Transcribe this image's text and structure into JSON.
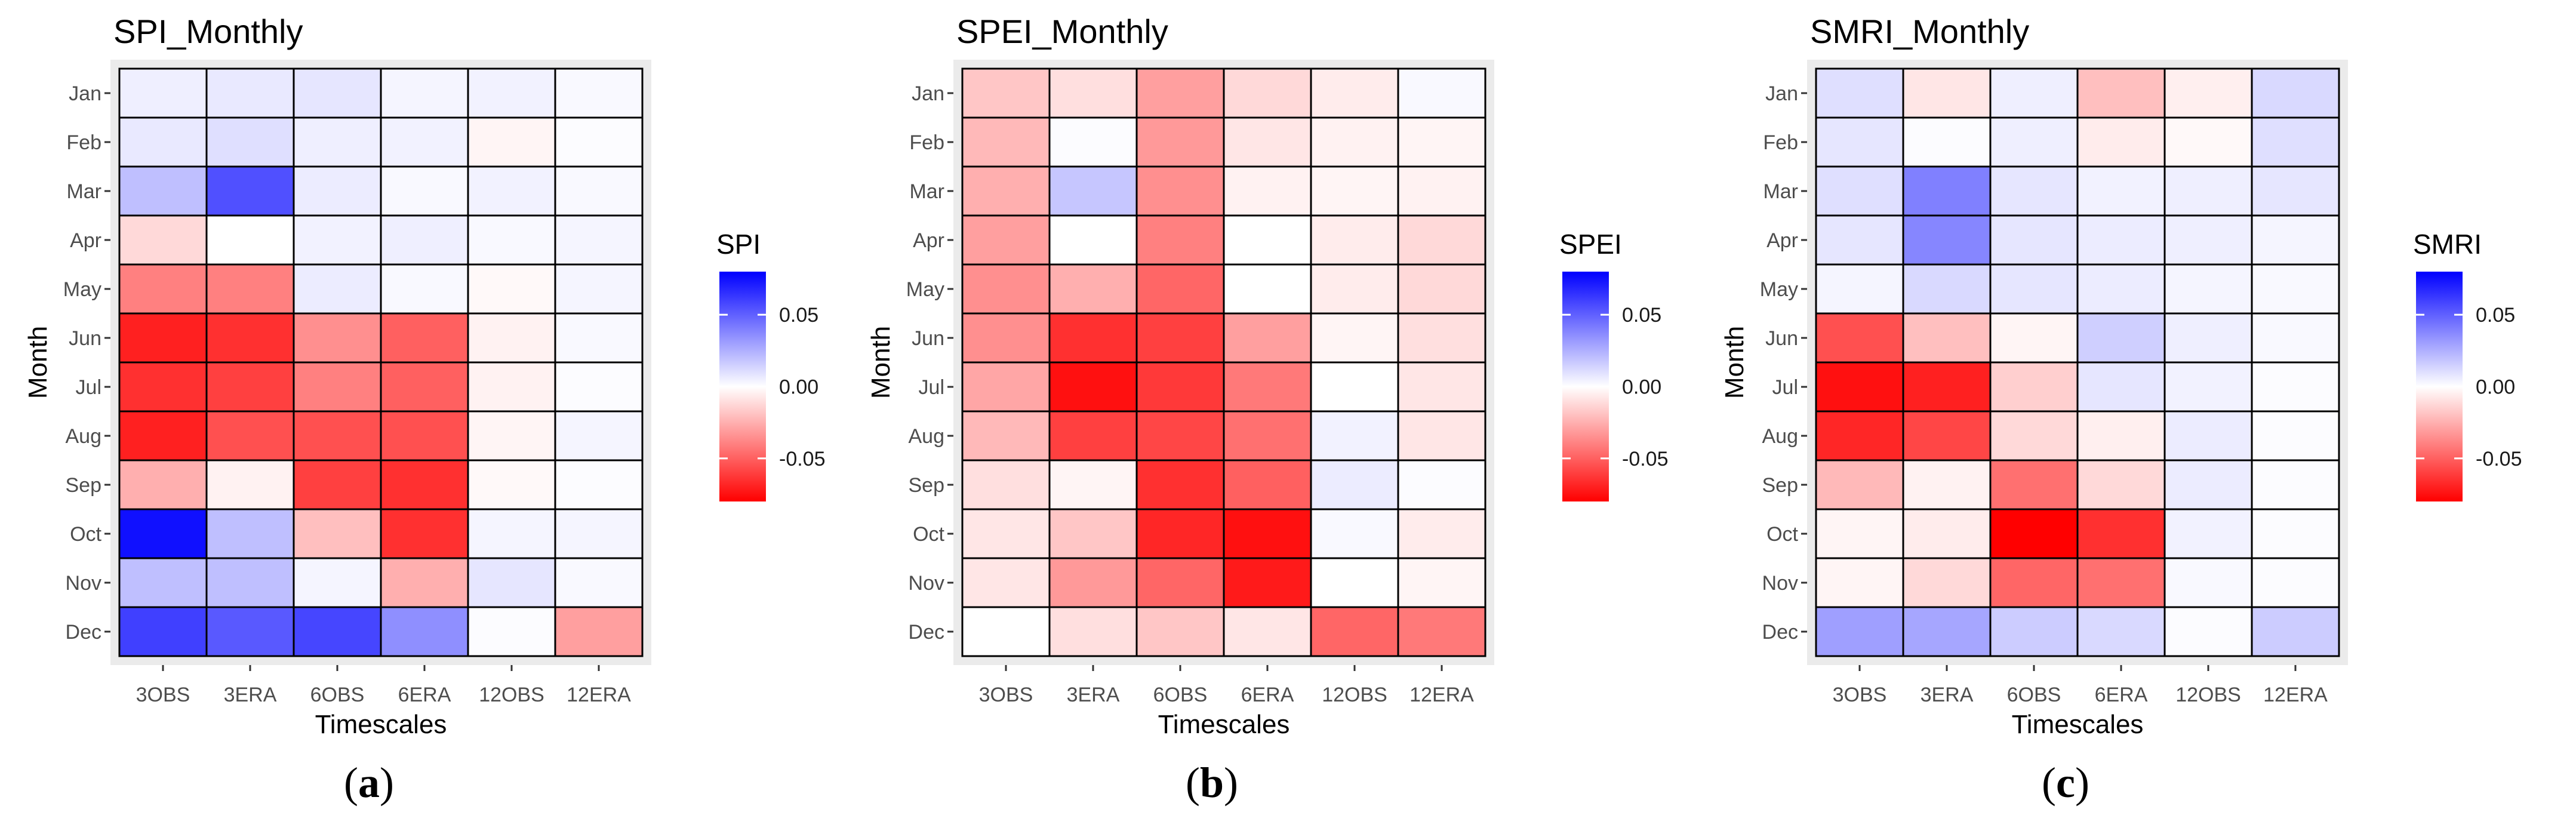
{
  "chart_data": [
    {
      "type": "heatmap",
      "title": "SPI_Monthly",
      "xlabel": "Timescales",
      "ylabel": "Month",
      "legend_title": "SPI",
      "legend_ticks": [
        0.05,
        0.0,
        -0.05
      ],
      "legend_tick_labels": [
        "0.05",
        "0.00",
        "-0.05"
      ],
      "value_range": [
        -0.08,
        0.08
      ],
      "colors": {
        "low": "#ff0000",
        "mid": "#ffffff",
        "high": "#0000ff"
      },
      "subcaption": "a",
      "x_categories": [
        "3OBS",
        "3ERA",
        "6OBS",
        "6ERA",
        "12OBS",
        "12ERA"
      ],
      "y_categories": [
        "Jan",
        "Feb",
        "Mar",
        "Apr",
        "May",
        "Jun",
        "Jul",
        "Aug",
        "Sep",
        "Oct",
        "Nov",
        "Dec"
      ],
      "values": [
        [
          0.005,
          0.007,
          0.008,
          0.003,
          0.004,
          0.002
        ],
        [
          0.007,
          0.01,
          0.005,
          0.004,
          -0.003,
          0.001
        ],
        [
          0.02,
          0.055,
          0.006,
          0.002,
          0.004,
          0.002
        ],
        [
          -0.012,
          0.0,
          0.004,
          0.005,
          0.002,
          0.003
        ],
        [
          -0.04,
          -0.04,
          0.006,
          0.002,
          -0.002,
          0.003
        ],
        [
          -0.07,
          -0.065,
          -0.035,
          -0.05,
          -0.004,
          0.002
        ],
        [
          -0.065,
          -0.06,
          -0.04,
          -0.05,
          -0.004,
          0.001
        ],
        [
          -0.07,
          -0.055,
          -0.055,
          -0.055,
          -0.003,
          0.003
        ],
        [
          -0.025,
          -0.004,
          -0.06,
          -0.065,
          -0.002,
          0.001
        ],
        [
          0.075,
          0.02,
          -0.02,
          -0.065,
          0.003,
          0.003
        ],
        [
          0.02,
          0.02,
          0.003,
          -0.025,
          0.008,
          0.002
        ],
        [
          0.06,
          0.052,
          0.058,
          0.035,
          0.001,
          -0.03
        ]
      ]
    },
    {
      "type": "heatmap",
      "title": "SPEI_Monthly",
      "xlabel": "Timescales",
      "ylabel": "Month",
      "legend_title": "SPEI",
      "legend_ticks": [
        0.05,
        0.0,
        -0.05
      ],
      "legend_tick_labels": [
        "0.05",
        "0.00",
        "-0.05"
      ],
      "value_range": [
        -0.08,
        0.08
      ],
      "colors": {
        "low": "#ff0000",
        "mid": "#ffffff",
        "high": "#0000ff"
      },
      "subcaption": "b",
      "x_categories": [
        "3OBS",
        "3ERA",
        "6OBS",
        "6ERA",
        "12OBS",
        "12ERA"
      ],
      "y_categories": [
        "Jan",
        "Feb",
        "Mar",
        "Apr",
        "May",
        "Jun",
        "Jul",
        "Aug",
        "Sep",
        "Oct",
        "Nov",
        "Dec"
      ],
      "values": [
        [
          -0.018,
          -0.01,
          -0.03,
          -0.012,
          -0.006,
          0.002
        ],
        [
          -0.022,
          0.001,
          -0.032,
          -0.008,
          -0.004,
          -0.003
        ],
        [
          -0.025,
          0.018,
          -0.035,
          -0.004,
          -0.003,
          -0.004
        ],
        [
          -0.03,
          0.0,
          -0.04,
          0.0,
          -0.006,
          -0.012
        ],
        [
          -0.035,
          -0.025,
          -0.048,
          0.0,
          -0.006,
          -0.012
        ],
        [
          -0.035,
          -0.065,
          -0.06,
          -0.03,
          -0.003,
          -0.01
        ],
        [
          -0.028,
          -0.075,
          -0.062,
          -0.042,
          0.0,
          -0.008
        ],
        [
          -0.022,
          -0.06,
          -0.058,
          -0.045,
          0.004,
          -0.008
        ],
        [
          -0.01,
          -0.003,
          -0.065,
          -0.05,
          0.006,
          0.001
        ],
        [
          -0.008,
          -0.018,
          -0.068,
          -0.075,
          0.002,
          -0.006
        ],
        [
          -0.008,
          -0.032,
          -0.048,
          -0.072,
          0.0,
          -0.003
        ],
        [
          0.0,
          -0.01,
          -0.018,
          -0.008,
          -0.048,
          -0.042
        ]
      ]
    },
    {
      "type": "heatmap",
      "title": "SMRI_Monthly",
      "xlabel": "Timescales",
      "ylabel": "Month",
      "legend_title": "SMRI",
      "legend_ticks": [
        0.05,
        0.0,
        -0.05
      ],
      "legend_tick_labels": [
        "0.05",
        "0.00",
        "-0.05"
      ],
      "value_range": [
        -0.08,
        0.08
      ],
      "colors": {
        "low": "#ff0000",
        "mid": "#ffffff",
        "high": "#0000ff"
      },
      "subcaption": "c",
      "x_categories": [
        "3OBS",
        "3ERA",
        "6OBS",
        "6ERA",
        "12OBS",
        "12ERA"
      ],
      "y_categories": [
        "Jan",
        "Feb",
        "Mar",
        "Apr",
        "May",
        "Jun",
        "Jul",
        "Aug",
        "Sep",
        "Oct",
        "Nov",
        "Dec"
      ],
      "values": [
        [
          0.01,
          -0.008,
          0.005,
          -0.02,
          -0.005,
          0.012
        ],
        [
          0.008,
          0.001,
          0.005,
          -0.006,
          -0.002,
          0.01
        ],
        [
          0.01,
          0.04,
          0.008,
          0.004,
          0.005,
          0.008
        ],
        [
          0.008,
          0.038,
          0.008,
          0.006,
          0.005,
          0.003
        ],
        [
          0.003,
          0.012,
          0.008,
          0.006,
          0.003,
          0.002
        ],
        [
          -0.055,
          -0.02,
          -0.003,
          0.015,
          0.005,
          0.002
        ],
        [
          -0.075,
          -0.07,
          -0.015,
          0.008,
          0.004,
          0.001
        ],
        [
          -0.068,
          -0.058,
          -0.012,
          -0.005,
          0.006,
          0.001
        ],
        [
          -0.022,
          -0.004,
          -0.045,
          -0.012,
          0.006,
          0.001
        ],
        [
          -0.003,
          -0.006,
          -0.08,
          -0.065,
          0.004,
          0.001
        ],
        [
          -0.003,
          -0.012,
          -0.048,
          -0.045,
          0.002,
          0.001
        ],
        [
          0.03,
          0.028,
          0.016,
          0.012,
          0.001,
          0.016
        ]
      ]
    }
  ]
}
